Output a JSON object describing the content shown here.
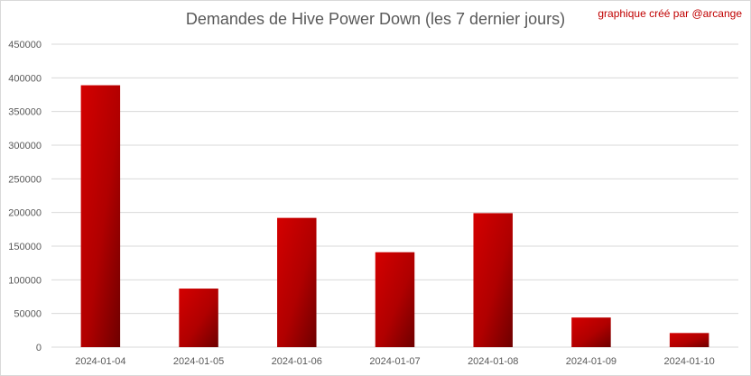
{
  "chart_data": {
    "type": "bar",
    "title": "Demandes de Hive Power Down (les 7 dernier jours)",
    "credit": "graphique créé par @arcange",
    "categories": [
      "2024-01-04",
      "2024-01-05",
      "2024-01-06",
      "2024-01-07",
      "2024-01-08",
      "2024-01-09",
      "2024-01-10"
    ],
    "values": [
      389000,
      87000,
      192000,
      141000,
      199000,
      44000,
      21000
    ],
    "ylim": [
      0,
      450000
    ],
    "yticks": [
      "0",
      "50000",
      "100000",
      "150000",
      "200000",
      "250000",
      "300000",
      "350000",
      "400000",
      "450000"
    ],
    "grid": true,
    "legend": "none",
    "colors": {
      "bar_light": "#d40000",
      "bar_dark": "#6e0000",
      "grid": "#d9d9d9",
      "text": "#595959",
      "credit": "#c00000"
    }
  }
}
